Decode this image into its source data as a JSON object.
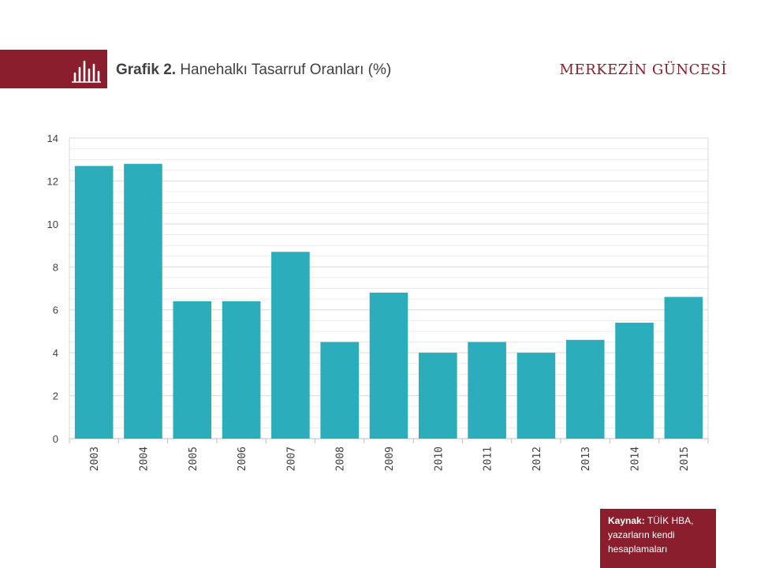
{
  "header": {
    "icon": "bar-chart-icon",
    "title_bold": "Grafik 2.",
    "title_rest": "Hanehalkı Tasarruf Oranları (%)",
    "brand": "MERKEZİN GÜNCESİ",
    "brand_color": "#8b1e2d"
  },
  "chart_data": {
    "type": "bar",
    "title": "Hanehalkı Tasarruf Oranları (%)",
    "xlabel": "",
    "ylabel": "",
    "categories": [
      "2003",
      "2004",
      "2005",
      "2006",
      "2007",
      "2008",
      "2009",
      "2010",
      "2011",
      "2012",
      "2013",
      "2014",
      "2015"
    ],
    "values": [
      12.7,
      12.8,
      6.4,
      6.4,
      8.7,
      4.5,
      6.8,
      4.0,
      4.5,
      4.0,
      4.6,
      5.4,
      6.6
    ],
    "ylim": [
      0,
      14
    ],
    "yticks": [
      0,
      2,
      4,
      6,
      8,
      10,
      12,
      14
    ],
    "bar_color": "#2badbb",
    "grid": true
  },
  "source": {
    "label": "Kaynak:",
    "text": "TÜİK HBA, yazarların kendi hesaplamaları"
  }
}
